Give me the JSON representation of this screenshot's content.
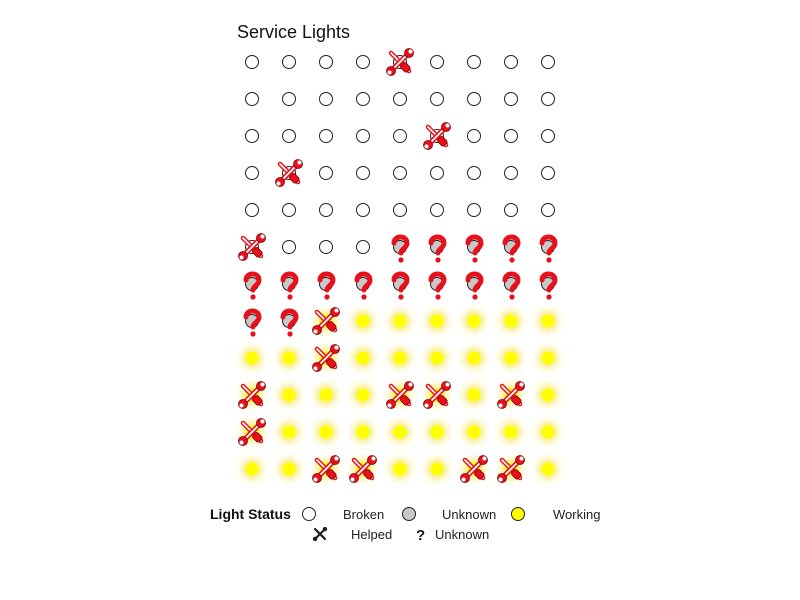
{
  "chart_data": {
    "type": "icon-grid",
    "title": "Service Lights",
    "columns": 9,
    "rows": [
      [
        "broken",
        "broken",
        "broken",
        "broken",
        "broken-helped",
        "broken",
        "broken",
        "broken",
        "broken"
      ],
      [
        "broken",
        "broken",
        "broken",
        "broken",
        "broken",
        "broken",
        "broken",
        "broken",
        "broken"
      ],
      [
        "broken",
        "broken",
        "broken",
        "broken",
        "broken",
        "broken-helped",
        "broken",
        "broken",
        "broken"
      ],
      [
        "broken",
        "broken-helped",
        "broken",
        "broken",
        "broken",
        "broken",
        "broken",
        "broken",
        "broken"
      ],
      [
        "broken",
        "broken",
        "broken",
        "broken",
        "broken",
        "broken",
        "broken",
        "broken",
        "broken"
      ],
      [
        "broken-helped",
        "broken",
        "broken",
        "broken",
        "unknown",
        "unknown",
        "unknown",
        "unknown",
        "unknown"
      ],
      [
        "unknown",
        "unknown",
        "unknown",
        "unknown",
        "unknown",
        "unknown",
        "unknown",
        "unknown",
        "unknown"
      ],
      [
        "unknown",
        "unknown",
        "working-helped",
        "working",
        "working",
        "working",
        "working",
        "working",
        "working"
      ],
      [
        "working",
        "working",
        "working-helped",
        "working",
        "working",
        "working",
        "working",
        "working",
        "working"
      ],
      [
        "working-helped",
        "working",
        "working",
        "working",
        "working-helped",
        "working-helped",
        "working",
        "working-helped",
        "working"
      ],
      [
        "working-helped",
        "working",
        "working",
        "working",
        "working",
        "working",
        "working",
        "working",
        "working"
      ],
      [
        "working",
        "working",
        "working-helped",
        "working-helped",
        "working",
        "working",
        "working-helped",
        "working-helped",
        "working"
      ]
    ],
    "legend": {
      "title": "Light Status",
      "placement": "bottom",
      "items": [
        {
          "key": "broken",
          "label": "Broken"
        },
        {
          "key": "unknown",
          "label": "Unknown"
        },
        {
          "key": "working",
          "label": "Working"
        }
      ],
      "markers": [
        {
          "key": "helped",
          "label": "Helped"
        },
        {
          "key": "question",
          "label": "Unknown"
        }
      ]
    },
    "colors": {
      "broken_fill": "#ffffff",
      "unknown_fill": "#c8c8c8",
      "working_fill": "#ffff00",
      "working_glow": "#f2e23a",
      "tool_red": "#e8101a",
      "outline": "#222222"
    }
  }
}
